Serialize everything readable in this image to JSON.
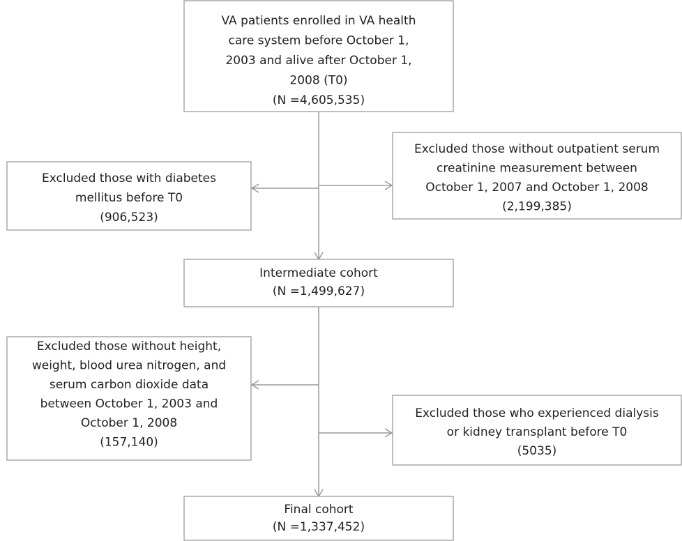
{
  "nodes": [
    {
      "lines": [
        "VA patients enrolled in VA health",
        "care system before October 1,",
        "2003 and alive after October  1,",
        "2008 (T0)",
        "(N =4,605,535)"
      ]
    },
    {
      "lines": [
        "Excluded those with diabetes",
        "mellitus before T0",
        "(906,523)"
      ]
    },
    {
      "lines": [
        "Excluded those without outpatient serum",
        "creatinine measurement between",
        "October 1, 2007 and  October 1, 2008",
        "(2,199,385)"
      ]
    },
    {
      "lines": [
        "Intermediate cohort",
        "(N =1,499,627)"
      ]
    },
    {
      "lines": [
        "Excluded those without height,",
        "weight, blood urea nitrogen, and",
        "serum carbon dioxide data",
        "between October 1, 2003 and",
        "October 1, 2008",
        "(157,140)"
      ]
    },
    {
      "lines": [
        "Excluded those who experienced dialysis",
        "or kidney transplant before T0",
        "(5035)"
      ]
    },
    {
      "lines": [
        "Final cohort",
        "(N =1,337,452)"
      ]
    }
  ]
}
